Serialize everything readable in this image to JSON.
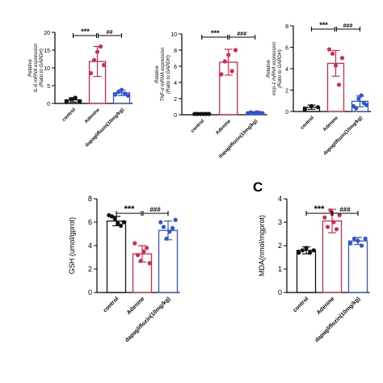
{
  "panel_letter": "C",
  "colors": {
    "control": "#111111",
    "adenine": "#d62a4a",
    "dapa": "#2f55d4"
  },
  "chart_data": [
    {
      "type": "bar",
      "id": "il6",
      "ylabel": [
        "Relative",
        "IL-6 mRNA expression",
        "(Ratio to GAPDH)"
      ],
      "yticks": [
        "0",
        "5",
        "10",
        "15",
        "20"
      ],
      "ylim": [
        0,
        20
      ],
      "categories": [
        "control",
        "Adenine",
        "dapagliflozin(10mg/kg)"
      ],
      "values": [
        1.0,
        11.8,
        3.0
      ],
      "errors": [
        0.6,
        4.2,
        0.8
      ],
      "points": [
        [
          0.6,
          1.2,
          1.6,
          0.6
        ],
        [
          8.5,
          12.2,
          14.5,
          16.0,
          10.8
        ],
        [
          2.5,
          3.2,
          3.8,
          2.8,
          2.2
        ]
      ],
      "significance": [
        "***",
        "##"
      ]
    },
    {
      "type": "bar",
      "id": "tnf",
      "ylabel": [
        "Relative",
        "TNF-α mRNA expression",
        "(Ratio to GAPDH)"
      ],
      "yticks": [
        "0",
        "2",
        "4",
        "6",
        "8",
        "10"
      ],
      "ylim": [
        0,
        10
      ],
      "categories": [
        "control",
        "Adenine",
        "dapagliflozin(10mg/kg)"
      ],
      "values": [
        0.1,
        6.5,
        0.25
      ],
      "errors": [
        0.05,
        1.6,
        0.1
      ],
      "points": [
        [
          0.1,
          0.1,
          0.1,
          0.1,
          0.1,
          0.1
        ],
        [
          5.0,
          6.6,
          7.4,
          5.4,
          8.0
        ],
        [
          0.2,
          0.3,
          0.2,
          0.3,
          0.25,
          0.2
        ]
      ],
      "significance": [
        "***",
        "###"
      ]
    },
    {
      "type": "bar",
      "id": "mcp1",
      "ylabel": [
        "Relative",
        "mcp-1 mRNA expression",
        "(Ratio to GAPDH)"
      ],
      "yticks": [
        "0",
        "2",
        "4",
        "6",
        "8"
      ],
      "ylim": [
        0,
        8
      ],
      "categories": [
        "control",
        "Adenine",
        "dapagliflozin(10mg/kg)"
      ],
      "values": [
        0.4,
        4.5,
        0.95
      ],
      "errors": [
        0.2,
        1.2,
        0.5
      ],
      "points": [
        [
          0.2,
          0.5,
          0.4
        ],
        [
          5.8,
          5.4,
          4.3,
          2.5,
          5.0
        ],
        [
          0.5,
          0.3,
          1.2,
          1.5,
          0.8,
          0.6
        ]
      ],
      "significance": [
        "***",
        "###"
      ]
    },
    {
      "type": "bar",
      "id": "gsh",
      "ylabel": [
        "GSH (umol/gprot)"
      ],
      "yticks": [
        "0",
        "2",
        "4",
        "6",
        "8"
      ],
      "ylim": [
        0,
        8
      ],
      "categories": [
        "control",
        "Adenine",
        "dapagliflozin(10mg/kg)"
      ],
      "values": [
        6.1,
        3.3,
        5.3
      ],
      "errors": [
        0.4,
        0.7,
        0.8
      ],
      "points": [
        [
          6.6,
          6.5,
          6.3,
          5.9,
          5.7,
          6.0
        ],
        [
          4.2,
          3.2,
          2.7,
          3.5,
          3.8,
          2.5
        ],
        [
          6.0,
          5.6,
          4.6,
          5.2,
          5.5,
          6.2
        ]
      ],
      "significance": [
        "***",
        "###"
      ]
    },
    {
      "type": "bar",
      "id": "mda",
      "ylabel": [
        "MDA(nmol/mgprot)"
      ],
      "yticks": [
        "0",
        "1",
        "2",
        "3",
        "4"
      ],
      "ylim": [
        0,
        4
      ],
      "categories": [
        "control",
        "Adenine",
        "dapagliflozin(10mg/kg)"
      ],
      "values": [
        1.8,
        3.05,
        2.2
      ],
      "errors": [
        0.15,
        0.5,
        0.15
      ],
      "points": [
        [
          1.7,
          1.8,
          1.9,
          1.7,
          1.8
        ],
        [
          3.2,
          2.8,
          3.5,
          3.0,
          2.7,
          3.3
        ],
        [
          2.1,
          2.3,
          2.2,
          2.0,
          2.3
        ]
      ],
      "significance": [
        "***",
        "###"
      ]
    }
  ]
}
